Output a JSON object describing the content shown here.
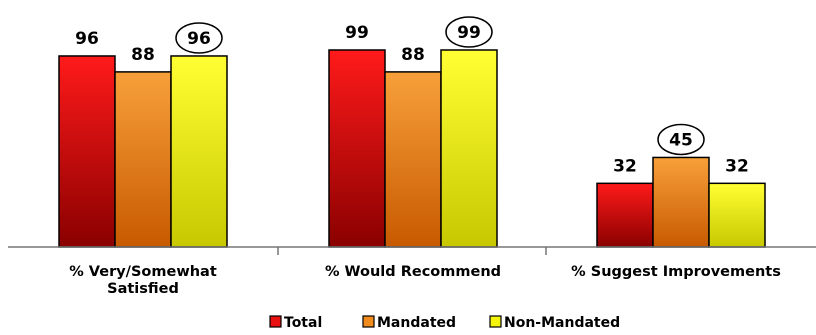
{
  "chart_data": {
    "type": "bar",
    "categories": [
      "% Very/Somewhat Satisfied",
      "% Would Recommend",
      "% Suggest Improvements"
    ],
    "category_lines": [
      [
        "% Very/Somewhat",
        "Satisfied"
      ],
      [
        "% Would Recommend"
      ],
      [
        "% Suggest Improvements"
      ]
    ],
    "series": [
      {
        "name": "Total",
        "values": [
          96,
          99,
          32
        ],
        "color": "#e81010"
      },
      {
        "name": "Mandated",
        "values": [
          88,
          88,
          45
        ],
        "color": "#f08c1e"
      },
      {
        "name": "Non-Mandated",
        "values": [
          96,
          99,
          32
        ],
        "color": "#f5f50a"
      }
    ],
    "circled": [
      [
        0,
        2
      ],
      [
        1,
        2
      ],
      [
        2,
        1
      ]
    ],
    "ylim": [
      0,
      100
    ],
    "grid": false,
    "legend": "bottom"
  }
}
